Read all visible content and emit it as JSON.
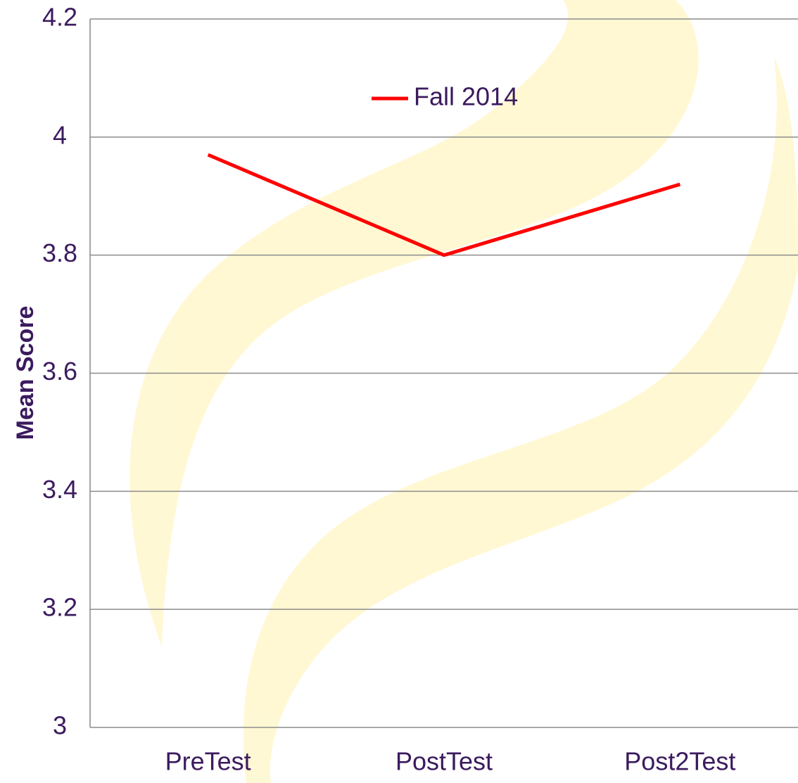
{
  "chart_data": {
    "type": "line",
    "y_label": "Mean Score",
    "categories": [
      "PreTest",
      "PostTest",
      "Post2Test"
    ],
    "series": [
      {
        "name": "Fall 2014",
        "color": "#ff0000",
        "values": [
          3.97,
          3.8,
          3.92
        ]
      }
    ],
    "ylim": [
      3,
      4.2
    ],
    "yticks": [
      3,
      3.2,
      3.4,
      3.6,
      3.8,
      4,
      4.2
    ],
    "grid": true,
    "legend": "top"
  }
}
